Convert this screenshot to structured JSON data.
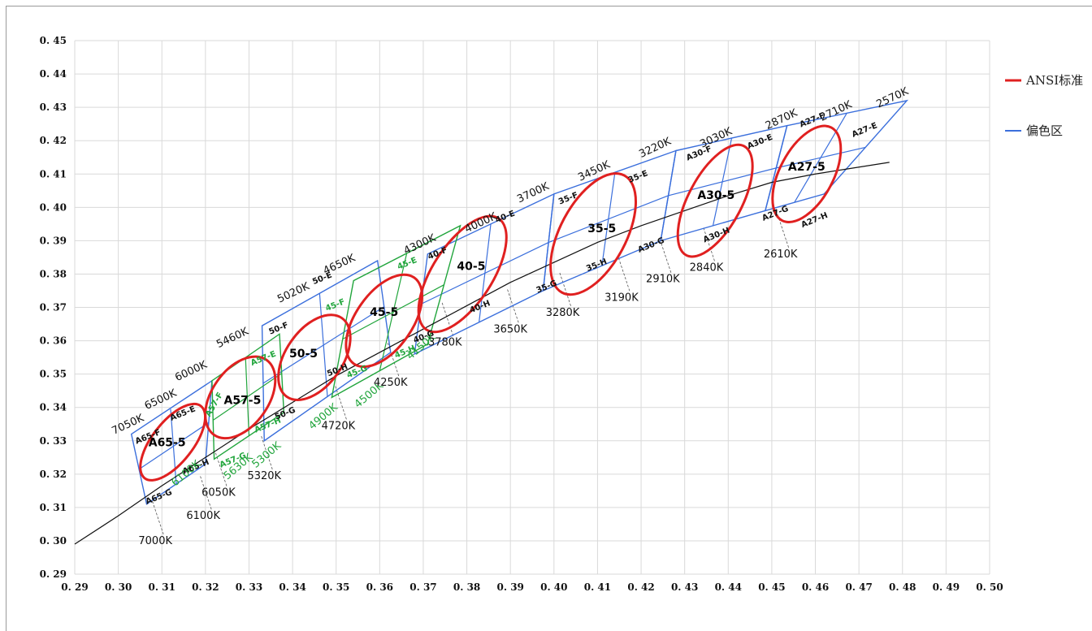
{
  "chart_data": {
    "type": "scatter",
    "title": "",
    "xlabel": "",
    "ylabel": "",
    "xlim": [
      0.29,
      0.5
    ],
    "ylim": [
      0.29,
      0.45
    ],
    "x_ticks": [
      "0. 29",
      "0. 30",
      "0. 31",
      "0. 32",
      "0. 33",
      "0. 34",
      "0. 35",
      "0. 36",
      "0. 37",
      "0. 38",
      "0. 39",
      "0. 40",
      "0. 41",
      "0. 42",
      "0. 43",
      "0. 44",
      "0. 45",
      "0. 46",
      "0. 47",
      "0. 48",
      "0. 49",
      "0. 50"
    ],
    "y_ticks": [
      "0. 45",
      "0. 44",
      "0. 43",
      "0. 42",
      "0. 41",
      "0. 40",
      "0. 39",
      "0. 38",
      "0. 37",
      "0. 36",
      "0. 35",
      "0. 34",
      "0. 33",
      "0. 32",
      "0. 31",
      "0. 30",
      "0. 29"
    ],
    "grid": true,
    "legend_position": "right",
    "legend": [
      {
        "name": "ANSI标准",
        "color": "#e02020"
      },
      {
        "name": "偏色区",
        "color": "#3b6fdc"
      }
    ],
    "colors": {
      "ansi": "#e02020",
      "bin_blue": "#3b6fdc",
      "bin_green": "#21a53c",
      "locus": "#111111"
    },
    "locus": [
      [
        0.29,
        0.299
      ],
      [
        0.3,
        0.3075
      ],
      [
        0.31,
        0.3165
      ],
      [
        0.32,
        0.325
      ],
      [
        0.33,
        0.3335
      ],
      [
        0.34,
        0.3415
      ],
      [
        0.35,
        0.3495
      ],
      [
        0.36,
        0.3565
      ],
      [
        0.37,
        0.3635
      ],
      [
        0.38,
        0.3705
      ],
      [
        0.39,
        0.3775
      ],
      [
        0.4,
        0.3835
      ],
      [
        0.41,
        0.3895
      ],
      [
        0.42,
        0.3945
      ],
      [
        0.43,
        0.399
      ],
      [
        0.44,
        0.4035
      ],
      [
        0.45,
        0.4075
      ],
      [
        0.46,
        0.41
      ],
      [
        0.477,
        0.4135
      ]
    ],
    "ellipses": [
      {
        "label": "A65-5",
        "cx": 0.3125,
        "cy": 0.3296,
        "rx": 0.0065,
        "ry": 0.01,
        "ang": 52
      },
      {
        "label": "A57-5",
        "cx": 0.328,
        "cy": 0.343,
        "rx": 0.009,
        "ry": 0.01,
        "ang": 55
      },
      {
        "label": "50-5",
        "cx": 0.345,
        "cy": 0.355,
        "rx": 0.009,
        "ry": 0.0105,
        "ang": 55
      },
      {
        "label": "45-5",
        "cx": 0.361,
        "cy": 0.366,
        "rx": 0.009,
        "ry": 0.0115,
        "ang": 55
      },
      {
        "label": "40-5",
        "cx": 0.379,
        "cy": 0.38,
        "rx": 0.0095,
        "ry": 0.0145,
        "ang": 57
      },
      {
        "label": "35-5",
        "cx": 0.409,
        "cy": 0.392,
        "rx": 0.0105,
        "ry": 0.0145,
        "ang": 62
      },
      {
        "label": "A30-5",
        "cx": 0.437,
        "cy": 0.402,
        "rx": 0.0085,
        "ry": 0.0135,
        "ang": 62
      },
      {
        "label": "A27-5",
        "cx": 0.458,
        "cy": 0.41,
        "rx": 0.0085,
        "ry": 0.0115,
        "ang": 62
      }
    ],
    "blue_bins": [
      {
        "name": "A65",
        "polygon": [
          [
            0.3065,
            0.311
          ],
          [
            0.32,
            0.323
          ],
          [
            0.3215,
            0.348
          ],
          [
            0.303,
            0.332
          ]
        ],
        "mid_top": [
          0.312,
          0.3395
        ],
        "mid_bot": [
          0.3133,
          0.317
        ],
        "mid_left": [
          0.3048,
          0.3215
        ],
        "mid_right": [
          0.3208,
          0.3355
        ]
      },
      {
        "name": "50",
        "polygon": [
          [
            0.3335,
            0.33
          ],
          [
            0.3625,
            0.3565
          ],
          [
            0.3595,
            0.384
          ],
          [
            0.333,
            0.3645
          ]
        ],
        "mid_top": [
          0.3462,
          0.3742
        ],
        "mid_bot": [
          0.348,
          0.3432
        ],
        "mid_left": [
          0.3332,
          0.3472
        ],
        "mid_right": [
          0.361,
          0.3702
        ]
      },
      {
        "name": "40",
        "polygon": [
          [
            0.368,
            0.356
          ],
          [
            0.3975,
            0.375
          ],
          [
            0.4,
            0.404
          ],
          [
            0.371,
            0.386
          ]
        ],
        "mid_top": [
          0.3855,
          0.395
        ],
        "mid_bot": [
          0.3828,
          0.3655
        ],
        "mid_left": [
          0.3695,
          0.371
        ],
        "mid_right": [
          0.3988,
          0.3895
        ]
      },
      {
        "name": "35",
        "polygon": [
          [
            0.3975,
            0.375
          ],
          [
            0.4245,
            0.39
          ],
          [
            0.428,
            0.417
          ],
          [
            0.4,
            0.404
          ]
        ],
        "mid_top": [
          0.414,
          0.4105
        ],
        "mid_bot": [
          0.411,
          0.3825
        ],
        "mid_left": [
          0.3988,
          0.3895
        ],
        "mid_right": [
          0.4262,
          0.4035
        ]
      },
      {
        "name": "A30",
        "polygon": [
          [
            0.4245,
            0.39
          ],
          [
            0.4485,
            0.399
          ],
          [
            0.4535,
            0.4245
          ],
          [
            0.428,
            0.417
          ]
        ],
        "mid_top": [
          0.4408,
          0.4208
        ],
        "mid_bot": [
          0.4365,
          0.3945
        ],
        "mid_left": [
          0.4262,
          0.4035
        ],
        "mid_right": [
          0.451,
          0.4118
        ]
      },
      {
        "name": "A27",
        "polygon": [
          [
            0.4485,
            0.399
          ],
          [
            0.462,
            0.404
          ],
          [
            0.481,
            0.432
          ],
          [
            0.4535,
            0.4245
          ]
        ],
        "mid_top": [
          0.4672,
          0.4282
        ],
        "mid_bot": [
          0.4552,
          0.4015
        ],
        "mid_left": [
          0.451,
          0.4118
        ],
        "mid_right": [
          0.4715,
          0.418
        ]
      }
    ],
    "green_bins": [
      {
        "name": "A57",
        "polygon": [
          [
            0.322,
            0.3245
          ],
          [
            0.338,
            0.3385
          ],
          [
            0.337,
            0.362
          ],
          [
            0.3215,
            0.348
          ]
        ],
        "mid_top": [
          0.3292,
          0.355
        ],
        "mid_bot": [
          0.33,
          0.3315
        ],
        "mid_left": [
          0.3218,
          0.3362
        ],
        "mid_right": [
          0.3375,
          0.3502
        ]
      },
      {
        "name": "45",
        "polygon": [
          [
            0.349,
            0.343
          ],
          [
            0.371,
            0.359
          ],
          [
            0.3785,
            0.3945
          ],
          [
            0.354,
            0.378
          ]
        ],
        "mid_top": [
          0.3662,
          0.3862
        ],
        "mid_bot": [
          0.36,
          0.351
        ],
        "mid_left": [
          0.3515,
          0.3605
        ],
        "mid_right": [
          0.3748,
          0.3768
        ]
      }
    ],
    "ansi_labels": [
      {
        "text": "A65-5",
        "x": 0.3112,
        "y": 0.3283
      },
      {
        "text": "A57-5",
        "x": 0.3285,
        "y": 0.341
      },
      {
        "text": "50-5",
        "x": 0.3425,
        "y": 0.355
      },
      {
        "text": "45-5",
        "x": 0.361,
        "y": 0.3675
      },
      {
        "text": "40-5",
        "x": 0.381,
        "y": 0.3812
      },
      {
        "text": "35-5",
        "x": 0.411,
        "y": 0.3925
      },
      {
        "text": "A30-5",
        "x": 0.4372,
        "y": 0.4025
      },
      {
        "text": "A27-5",
        "x": 0.458,
        "y": 0.411
      }
    ],
    "bin_labels": [
      {
        "text": "A65-F",
        "x": 0.307,
        "y": 0.3305,
        "rot": -22,
        "green": false
      },
      {
        "text": "A65-E",
        "x": 0.315,
        "y": 0.3375,
        "rot": -22,
        "green": false
      },
      {
        "text": "A65-H",
        "x": 0.318,
        "y": 0.3215,
        "rot": -22,
        "green": false
      },
      {
        "text": "A65-G",
        "x": 0.3095,
        "y": 0.3125,
        "rot": -22,
        "green": false
      },
      {
        "text": "A57-F",
        "x": 0.3225,
        "y": 0.3405,
        "rot": -60,
        "green": true
      },
      {
        "text": "A57-E",
        "x": 0.3335,
        "y": 0.354,
        "rot": -22,
        "green": true
      },
      {
        "text": "A57-H",
        "x": 0.3345,
        "y": 0.334,
        "rot": -22,
        "green": true
      },
      {
        "text": "A57-G",
        "x": 0.3265,
        "y": 0.3235,
        "rot": -22,
        "green": true
      },
      {
        "text": "50-F",
        "x": 0.337,
        "y": 0.363,
        "rot": -22,
        "green": false
      },
      {
        "text": "50-E",
        "x": 0.347,
        "y": 0.378,
        "rot": -22,
        "green": false
      },
      {
        "text": "50-H",
        "x": 0.3505,
        "y": 0.3505,
        "rot": -22,
        "green": false
      },
      {
        "text": "50-G",
        "x": 0.3385,
        "y": 0.3375,
        "rot": -22,
        "green": false
      },
      {
        "text": "45-F",
        "x": 0.35,
        "y": 0.37,
        "rot": -22,
        "green": true
      },
      {
        "text": "45-E",
        "x": 0.3665,
        "y": 0.3825,
        "rot": -22,
        "green": true
      },
      {
        "text": "45-G",
        "x": 0.355,
        "y": 0.35,
        "rot": -22,
        "green": true
      },
      {
        "text": "45-H",
        "x": 0.366,
        "y": 0.356,
        "rot": -22,
        "green": true
      },
      {
        "text": "40-F",
        "x": 0.3735,
        "y": 0.3855,
        "rot": -22,
        "green": false
      },
      {
        "text": "40-E",
        "x": 0.389,
        "y": 0.3965,
        "rot": -22,
        "green": false
      },
      {
        "text": "40-H",
        "x": 0.3832,
        "y": 0.3695,
        "rot": -22,
        "green": false
      },
      {
        "text": "40-G",
        "x": 0.3703,
        "y": 0.3605,
        "rot": -22,
        "green": false
      },
      {
        "text": "35-F",
        "x": 0.4035,
        "y": 0.402,
        "rot": -22,
        "green": false
      },
      {
        "text": "35-E",
        "x": 0.4195,
        "y": 0.4085,
        "rot": -22,
        "green": false
      },
      {
        "text": "35-H",
        "x": 0.41,
        "y": 0.382,
        "rot": -22,
        "green": false
      },
      {
        "text": "35-G",
        "x": 0.3985,
        "y": 0.3755,
        "rot": -22,
        "green": false
      },
      {
        "text": "A30-F",
        "x": 0.4335,
        "y": 0.4155,
        "rot": -22,
        "green": false
      },
      {
        "text": "A30-E",
        "x": 0.4475,
        "y": 0.419,
        "rot": -22,
        "green": false
      },
      {
        "text": "A30-H",
        "x": 0.4375,
        "y": 0.391,
        "rot": -22,
        "green": false
      },
      {
        "text": "A30-G",
        "x": 0.4225,
        "y": 0.388,
        "rot": -22,
        "green": false
      },
      {
        "text": "A27-F",
        "x": 0.4595,
        "y": 0.4255,
        "rot": -22,
        "green": false
      },
      {
        "text": "A27-E",
        "x": 0.4715,
        "y": 0.4225,
        "rot": -22,
        "green": false
      },
      {
        "text": "A27-H",
        "x": 0.46,
        "y": 0.3955,
        "rot": -22,
        "green": false
      },
      {
        "text": "A27-G",
        "x": 0.451,
        "y": 0.3975,
        "rot": -22,
        "green": false
      }
    ],
    "cct_labels": [
      {
        "text": "7050K",
        "x": 0.3025,
        "y": 0.334,
        "rot": -25,
        "green": false
      },
      {
        "text": "6500K",
        "x": 0.31,
        "y": 0.3415,
        "rot": -25,
        "green": false
      },
      {
        "text": "6000K",
        "x": 0.317,
        "y": 0.35,
        "rot": -25,
        "green": false
      },
      {
        "text": "5460K",
        "x": 0.3265,
        "y": 0.36,
        "rot": -25,
        "green": false
      },
      {
        "text": "5020K",
        "x": 0.3405,
        "y": 0.3735,
        "rot": -25,
        "green": false
      },
      {
        "text": "4650K",
        "x": 0.351,
        "y": 0.382,
        "rot": -25,
        "green": false
      },
      {
        "text": "4300K",
        "x": 0.3695,
        "y": 0.388,
        "rot": -25,
        "green": false
      },
      {
        "text": "4000K",
        "x": 0.3835,
        "y": 0.3945,
        "rot": -25,
        "green": false
      },
      {
        "text": "3700K",
        "x": 0.3955,
        "y": 0.4035,
        "rot": -25,
        "green": false
      },
      {
        "text": "3450K",
        "x": 0.4095,
        "y": 0.41,
        "rot": -25,
        "green": false
      },
      {
        "text": "3220K",
        "x": 0.4235,
        "y": 0.417,
        "rot": -25,
        "green": false
      },
      {
        "text": "3030K",
        "x": 0.4375,
        "y": 0.42,
        "rot": -25,
        "green": false
      },
      {
        "text": "2870K",
        "x": 0.4525,
        "y": 0.4255,
        "rot": -25,
        "green": false
      },
      {
        "text": "2710K",
        "x": 0.465,
        "y": 0.428,
        "rot": -25,
        "green": false
      },
      {
        "text": "2570K",
        "x": 0.478,
        "y": 0.432,
        "rot": -25,
        "green": false
      },
      {
        "text": "7000K",
        "x": 0.3085,
        "y": 0.299,
        "rot": 0,
        "green": false
      },
      {
        "text": "6100K",
        "x": 0.3195,
        "y": 0.3065,
        "rot": 0,
        "green": false
      },
      {
        "text": "6050K",
        "x": 0.323,
        "y": 0.3135,
        "rot": 0,
        "green": false
      },
      {
        "text": "6100K",
        "x": 0.316,
        "y": 0.3195,
        "rot": -40,
        "green": true
      },
      {
        "text": "5630K",
        "x": 0.328,
        "y": 0.3215,
        "rot": -40,
        "green": true
      },
      {
        "text": "5300K",
        "x": 0.3345,
        "y": 0.325,
        "rot": -40,
        "green": true
      },
      {
        "text": "5320K",
        "x": 0.3335,
        "y": 0.3185,
        "rot": 0,
        "green": false
      },
      {
        "text": "4900K",
        "x": 0.3475,
        "y": 0.3365,
        "rot": -40,
        "green": true
      },
      {
        "text": "4720K",
        "x": 0.3505,
        "y": 0.3335,
        "rot": 0,
        "green": false
      },
      {
        "text": "4500K",
        "x": 0.358,
        "y": 0.343,
        "rot": -40,
        "green": true
      },
      {
        "text": "4250K",
        "x": 0.3625,
        "y": 0.3465,
        "rot": 0,
        "green": false
      },
      {
        "text": "4150K",
        "x": 0.37,
        "y": 0.3575,
        "rot": -40,
        "green": true
      },
      {
        "text": "3780K",
        "x": 0.375,
        "y": 0.3585,
        "rot": 0,
        "green": false
      },
      {
        "text": "3650K",
        "x": 0.39,
        "y": 0.3625,
        "rot": 0,
        "green": false
      },
      {
        "text": "3280K",
        "x": 0.402,
        "y": 0.3675,
        "rot": 0,
        "green": false
      },
      {
        "text": "3190K",
        "x": 0.4155,
        "y": 0.372,
        "rot": 0,
        "green": false
      },
      {
        "text": "2910K",
        "x": 0.425,
        "y": 0.3775,
        "rot": 0,
        "green": false
      },
      {
        "text": "2840K",
        "x": 0.435,
        "y": 0.381,
        "rot": 0,
        "green": false
      },
      {
        "text": "2610K",
        "x": 0.452,
        "y": 0.385,
        "rot": 0,
        "green": false
      }
    ]
  }
}
